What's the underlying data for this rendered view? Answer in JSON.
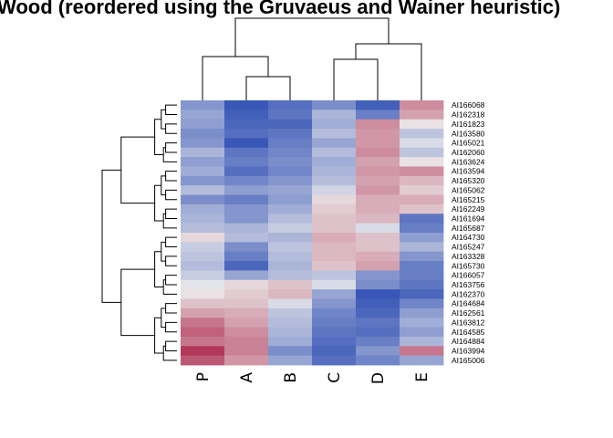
{
  "chart_data": {
    "type": "heatmap",
    "title": "Wood (reordered using the Gruvaeus and Wainer heuristic)",
    "columns": [
      "P",
      "A",
      "B",
      "C",
      "D",
      "E"
    ],
    "column_dendrogram": "((P,(A,B)),((C,D),E))",
    "row_labels": [
      "AI166068",
      "AI162318",
      "AI161823",
      "AI163580",
      "AI165021",
      "AI162060",
      "AI163624",
      "AI163594",
      "AI165320",
      "AI165062",
      "AI165215",
      "AI162249",
      "AI161694",
      "AI165687",
      "AI164730",
      "AI165247",
      "AI163328",
      "AI165730",
      "AI166057",
      "AI163756",
      "AI162370",
      "AI164684",
      "AI162561",
      "AI163812",
      "AI164585",
      "AI164884",
      "AI163994",
      "AI165006"
    ],
    "color_scale": {
      "low": "#2f4fb4",
      "mid": "#ececec",
      "high": "#a8183f"
    },
    "value_range": [
      -1,
      1
    ],
    "matrix": [
      [
        -0.55,
        -0.95,
        -0.8,
        -0.6,
        -0.9,
        0.45
      ],
      [
        -0.45,
        -0.9,
        -0.75,
        -0.35,
        -0.7,
        0.35
      ],
      [
        -0.5,
        -0.85,
        -0.85,
        -0.4,
        0.45,
        0.05
      ],
      [
        -0.6,
        -0.8,
        -0.75,
        -0.3,
        0.4,
        -0.25
      ],
      [
        -0.55,
        -0.95,
        -0.7,
        -0.45,
        0.4,
        -0.1
      ],
      [
        -0.35,
        -0.75,
        -0.65,
        -0.3,
        0.45,
        -0.25
      ],
      [
        -0.5,
        -0.7,
        -0.6,
        -0.4,
        0.35,
        0.05
      ],
      [
        -0.4,
        -0.8,
        -0.65,
        -0.35,
        0.4,
        0.45
      ],
      [
        -0.55,
        -0.65,
        -0.55,
        -0.3,
        0.35,
        0.25
      ],
      [
        -0.3,
        -0.5,
        -0.45,
        -0.15,
        0.4,
        0.15
      ],
      [
        -0.6,
        -0.7,
        -0.5,
        0.1,
        0.3,
        0.3
      ],
      [
        -0.4,
        -0.55,
        -0.4,
        0.15,
        0.3,
        0.2
      ],
      [
        -0.35,
        -0.55,
        -0.3,
        0.2,
        0.25,
        -0.75
      ],
      [
        -0.3,
        -0.35,
        -0.2,
        0.2,
        -0.1,
        -0.7
      ],
      [
        0.1,
        -0.3,
        -0.35,
        0.3,
        0.2,
        -0.5
      ],
      [
        -0.2,
        -0.6,
        -0.25,
        0.25,
        0.2,
        -0.35
      ],
      [
        -0.25,
        -0.7,
        -0.3,
        0.25,
        0.3,
        -0.55
      ],
      [
        -0.3,
        -0.85,
        -0.35,
        0.2,
        0.35,
        -0.7
      ],
      [
        -0.2,
        -0.45,
        -0.3,
        -0.25,
        -0.55,
        -0.7
      ],
      [
        -0.05,
        0.1,
        0.2,
        -0.1,
        -0.6,
        -0.75
      ],
      [
        0.05,
        0.15,
        0.25,
        -0.45,
        -0.95,
        -0.85
      ],
      [
        0.2,
        0.2,
        -0.1,
        -0.55,
        -0.9,
        -0.65
      ],
      [
        0.35,
        0.3,
        -0.25,
        -0.65,
        -0.85,
        -0.5
      ],
      [
        0.55,
        0.35,
        -0.3,
        -0.7,
        -0.75,
        -0.4
      ],
      [
        0.65,
        0.45,
        -0.35,
        -0.75,
        -0.8,
        -0.5
      ],
      [
        0.55,
        0.5,
        -0.4,
        -0.8,
        -0.7,
        -0.35
      ],
      [
        0.85,
        0.5,
        -0.6,
        -0.85,
        -0.55,
        0.55
      ],
      [
        0.7,
        0.4,
        -0.45,
        -0.8,
        -0.65,
        -0.45
      ]
    ],
    "grid": false,
    "legend": "none"
  }
}
